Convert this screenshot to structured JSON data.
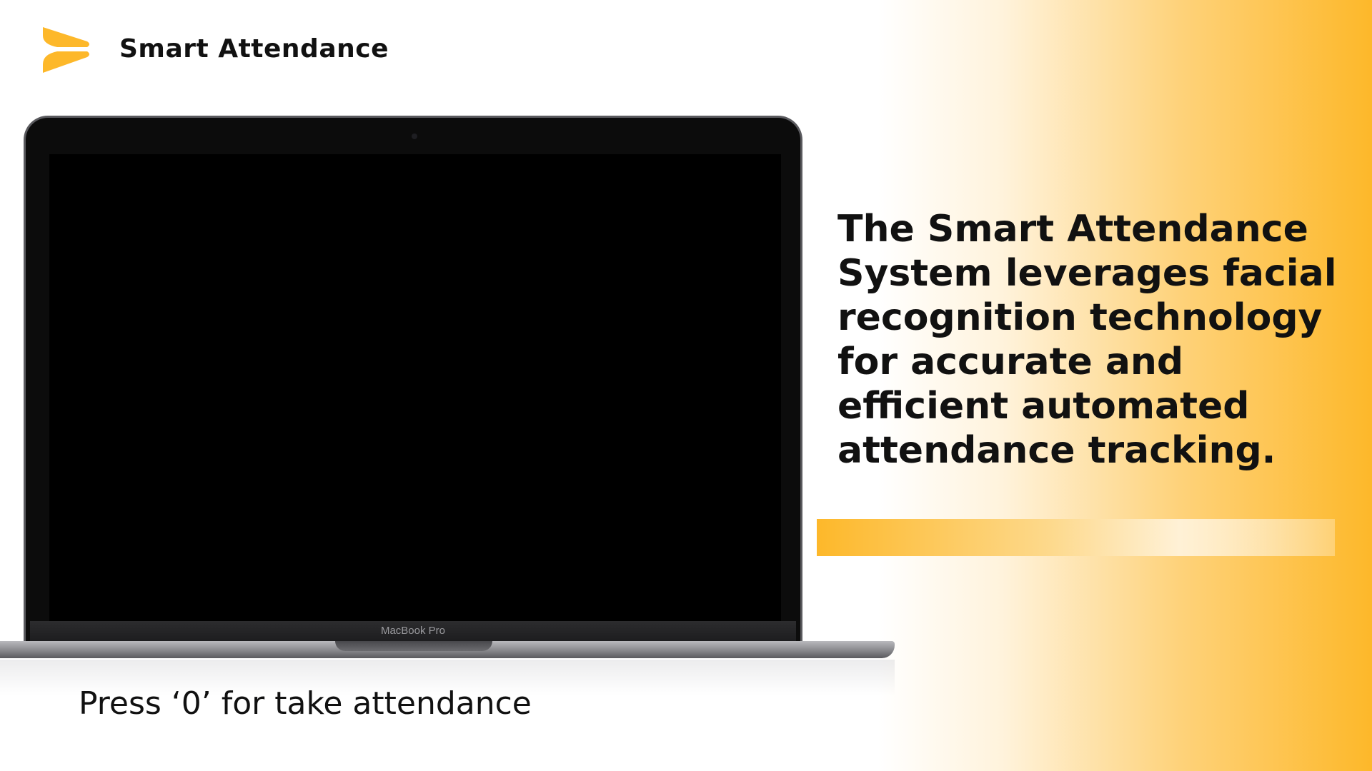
{
  "header": {
    "logo_icon": "chevron-arrow-logo-icon",
    "title": "Smart Attendance"
  },
  "laptop": {
    "model_label": "MacBook Pro"
  },
  "description": "The Smart Attendance System leverages facial recognition technology for accurate and efficient automated attendance tracking.",
  "prompt": "Press ‘0’ for take attendance",
  "colors": {
    "accent": "#fdb82a",
    "text": "#111111",
    "screen": "#000000"
  }
}
